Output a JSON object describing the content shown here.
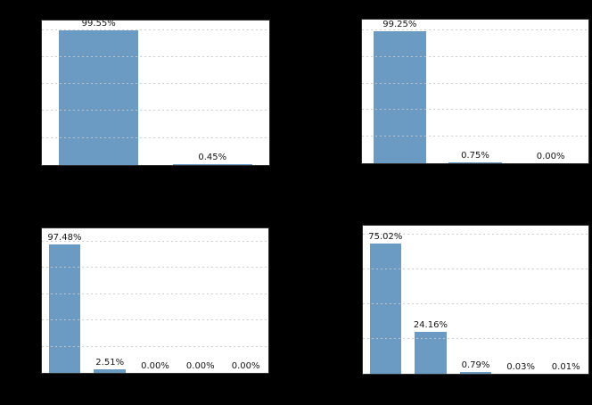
{
  "figure": {
    "description": "2x2 grid of bar chart subplots on black background; only plot areas, bars, gridlines and value labels are visible",
    "colors": {
      "figure_background": "#000000",
      "panel_background": "#ffffff",
      "bar_fill": "#6b9bc3",
      "gridline": "#c9c9c9",
      "spine": "#2f2f2f",
      "value_label_text": "#141414"
    }
  },
  "chart_data": [
    {
      "type": "bar",
      "position": "top-left",
      "values": [
        99.55,
        0.45
      ],
      "value_labels": [
        "99.55%",
        "0.45%"
      ],
      "ylim": [
        0,
        107
      ],
      "grid": "horizontal-dashed",
      "gridline_step": 20,
      "legend": "none",
      "title": "",
      "xlabel": "",
      "ylabel": ""
    },
    {
      "type": "bar",
      "position": "top-right",
      "values": [
        99.25,
        0.75,
        0.0
      ],
      "value_labels": [
        "99.25%",
        "0.75%",
        "0.00%"
      ],
      "ylim": [
        0,
        108
      ],
      "grid": "horizontal-dashed",
      "gridline_step": 20,
      "legend": "none",
      "title": "",
      "xlabel": "",
      "ylabel": ""
    },
    {
      "type": "bar",
      "position": "bottom-left",
      "values": [
        97.48,
        2.51,
        0.0,
        0.0,
        0.0
      ],
      "value_labels": [
        "97.48%",
        "2.51%",
        "0.00%",
        "0.00%",
        "0.00%"
      ],
      "ylim": [
        0,
        110
      ],
      "grid": "horizontal-dashed",
      "gridline_step": 20,
      "legend": "none",
      "title": "",
      "xlabel": "",
      "ylabel": ""
    },
    {
      "type": "bar",
      "position": "bottom-right",
      "values": [
        75.02,
        24.16,
        0.79,
        0.03,
        0.01
      ],
      "value_labels": [
        "75.02%",
        "24.16%",
        "0.79%",
        "0.03%",
        "0.01%"
      ],
      "ylim": [
        0,
        85
      ],
      "grid": "horizontal-dashed",
      "gridline_step": 20,
      "legend": "none",
      "title": "",
      "xlabel": "",
      "ylabel": ""
    }
  ]
}
